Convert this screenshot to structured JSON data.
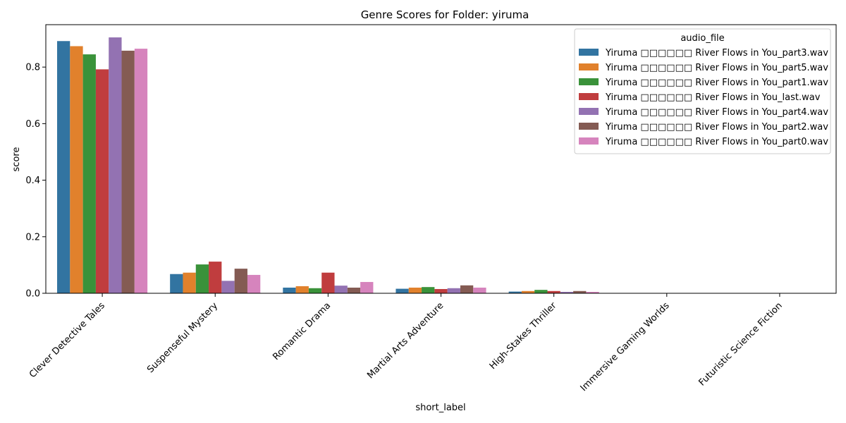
{
  "chart_data": {
    "type": "bar",
    "title": "Genre Scores for Folder: yiruma",
    "xlabel": "short_label",
    "ylabel": "score",
    "ylim": [
      0,
      0.95
    ],
    "yticks": [
      "0.0",
      "0.2",
      "0.4",
      "0.6",
      "0.8"
    ],
    "ytick_values": [
      0,
      0.2,
      0.4,
      0.6,
      0.8
    ],
    "categories": [
      "Clever Detective Tales",
      "Suspenseful Mystery",
      "Romantic Drama",
      "Martial Arts Adventure",
      "High-Stakes Thriller",
      "Immersive Gaming Worlds",
      "Futuristic Science Fiction"
    ],
    "legend_title": "audio_file",
    "legend_position": "top-right",
    "grid": false,
    "series": [
      {
        "name": "Yiruma □□□□□□  River Flows in You_part3.wav",
        "color": "#3274a1",
        "values": [
          0.892,
          0.068,
          0.02,
          0.016,
          0.006,
          0.0,
          0.0
        ]
      },
      {
        "name": "Yiruma □□□□□□  River Flows in You_part5.wav",
        "color": "#e1812c",
        "values": [
          0.874,
          0.073,
          0.025,
          0.02,
          0.008,
          0.0,
          0.0
        ]
      },
      {
        "name": "Yiruma □□□□□□  River Flows in You_part1.wav",
        "color": "#3a923a",
        "values": [
          0.845,
          0.102,
          0.018,
          0.022,
          0.012,
          0.0,
          0.0
        ]
      },
      {
        "name": "Yiruma □□□□□□  River Flows in You_last.wav",
        "color": "#c03d3e",
        "values": [
          0.792,
          0.112,
          0.073,
          0.015,
          0.008,
          0.0,
          0.0
        ]
      },
      {
        "name": "Yiruma □□□□□□  River Flows in You_part4.wav",
        "color": "#9372b2",
        "values": [
          0.905,
          0.044,
          0.027,
          0.018,
          0.005,
          0.0,
          0.0
        ]
      },
      {
        "name": "Yiruma □□□□□□  River Flows in You_part2.wav",
        "color": "#845b53",
        "values": [
          0.858,
          0.087,
          0.02,
          0.028,
          0.008,
          0.0,
          0.0
        ]
      },
      {
        "name": "Yiruma □□□□□□  River Flows in You_part0.wav",
        "color": "#d684bd",
        "values": [
          0.865,
          0.065,
          0.04,
          0.02,
          0.005,
          0.0,
          0.0
        ]
      }
    ]
  }
}
